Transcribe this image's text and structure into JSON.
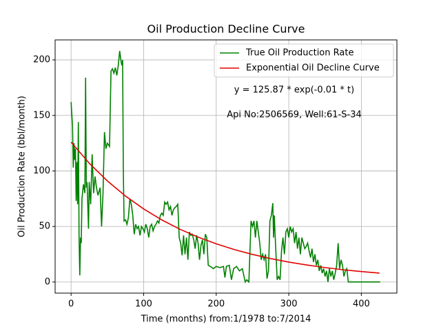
{
  "chart_data": {
    "type": "line",
    "title": "Oil Production Decline Curve",
    "xlabel": "Time (months) from:1/1978 to:7/2014",
    "ylabel": "Oil Production Rate (bbl/month)",
    "annotations": [
      "y = 125.87 * exp(-0.01 * t)",
      "Api No:2506569, Well:61-S-34"
    ],
    "xlim": [
      -22,
      449
    ],
    "ylim": [
      -10,
      218
    ],
    "xticks": [
      0,
      100,
      200,
      300,
      400
    ],
    "yticks": [
      0,
      50,
      100,
      150,
      200
    ],
    "grid": true,
    "legend": "upper right",
    "series": [
      {
        "name": "True Oil Production Rate",
        "color": "#008000",
        "x": [
          0,
          2,
          3,
          4,
          5,
          6,
          7,
          8,
          9,
          10,
          11,
          12,
          13,
          14,
          15,
          17,
          19,
          20,
          21,
          22,
          24,
          25,
          27,
          29,
          31,
          33,
          35,
          37,
          40,
          42,
          44,
          46,
          48,
          50,
          53,
          55,
          57,
          59,
          61,
          63,
          65,
          67,
          69,
          70,
          71,
          72,
          73,
          75,
          77,
          79,
          81,
          83,
          85,
          87,
          89,
          91,
          93,
          95,
          97,
          99,
          101,
          103,
          105,
          107,
          109,
          111,
          113,
          115,
          117,
          119,
          121,
          123,
          125,
          127,
          129,
          131,
          133,
          135,
          137,
          139,
          141,
          143,
          145,
          147,
          149,
          151,
          153,
          155,
          157,
          159,
          161,
          163,
          165,
          167,
          169,
          171,
          173,
          175,
          177,
          179,
          181,
          183,
          185,
          187,
          189,
          192,
          196,
          200,
          205,
          210,
          212,
          214,
          218,
          221,
          224,
          228,
          232,
          236,
          240,
          242,
          245,
          248,
          250,
          252,
          254,
          256,
          258,
          260,
          262,
          264,
          266,
          268,
          270,
          272,
          274,
          276,
          278,
          279,
          280,
          282,
          284,
          286,
          288,
          290,
          292,
          294,
          296,
          298,
          300,
          302,
          304,
          306,
          308,
          310,
          312,
          314,
          316,
          318,
          320,
          322,
          324,
          326,
          328,
          330,
          332,
          334,
          336,
          338,
          340,
          342,
          344,
          346,
          348,
          350,
          352,
          354,
          356,
          358,
          360,
          362,
          364,
          366,
          368,
          370,
          372,
          374,
          376,
          378,
          380,
          382,
          390,
          400,
          426
        ],
        "values": [
          162,
          140,
          103,
          125,
          110,
          120,
          73,
          108,
          70,
          144,
          40,
          6,
          40,
          35,
          75,
          88,
          80,
          184,
          85,
          90,
          48,
          90,
          70,
          115,
          80,
          95,
          85,
          78,
          85,
          50,
          80,
          135,
          120,
          125,
          122,
          190,
          192,
          188,
          193,
          186,
          195,
          208,
          198,
          195,
          200,
          100,
          55,
          56,
          52,
          58,
          75,
          70,
          60,
          43,
          52,
          48,
          50,
          42,
          50,
          48,
          45,
          52,
          48,
          40,
          50,
          52,
          46,
          50,
          52,
          55,
          53,
          60,
          62,
          60,
          72,
          70,
          72,
          65,
          68,
          60,
          65,
          67,
          68,
          70,
          40,
          35,
          24,
          42,
          25,
          40,
          20,
          45,
          42,
          43,
          38,
          30,
          42,
          35,
          20,
          33,
          38,
          25,
          43,
          40,
          15,
          14,
          12,
          14,
          13,
          14,
          4,
          14,
          15,
          2,
          12,
          14,
          10,
          12,
          0,
          2,
          0,
          55,
          50,
          55,
          40,
          55,
          45,
          35,
          20,
          25,
          20,
          25,
          3,
          10,
          55,
          60,
          71,
          40,
          60,
          30,
          2,
          5,
          2,
          28,
          40,
          25,
          45,
          48,
          40,
          50,
          45,
          48,
          35,
          45,
          30,
          40,
          25,
          40,
          35,
          30,
          32,
          35,
          28,
          22,
          30,
          18,
          25,
          15,
          20,
          10,
          15,
          8,
          12,
          5,
          10,
          0,
          12,
          5,
          10,
          2,
          8,
          15,
          35,
          12,
          20,
          15,
          5,
          10,
          12,
          0,
          0,
          0,
          0
        ]
      },
      {
        "name": "Exponential Oil Decline Curve",
        "color": "#e00000",
        "x": [
          0,
          25,
          50,
          75,
          100,
          125,
          150,
          175,
          200,
          225,
          250,
          275,
          300,
          325,
          350,
          375,
          400,
          425
        ],
        "values": [
          125.9,
          107.0,
          91.0,
          77.4,
          65.8,
          55.9,
          47.5,
          40.4,
          34.4,
          29.2,
          24.8,
          21.1,
          17.9,
          15.3,
          13.0,
          11.0,
          9.4,
          8.0
        ]
      }
    ]
  }
}
